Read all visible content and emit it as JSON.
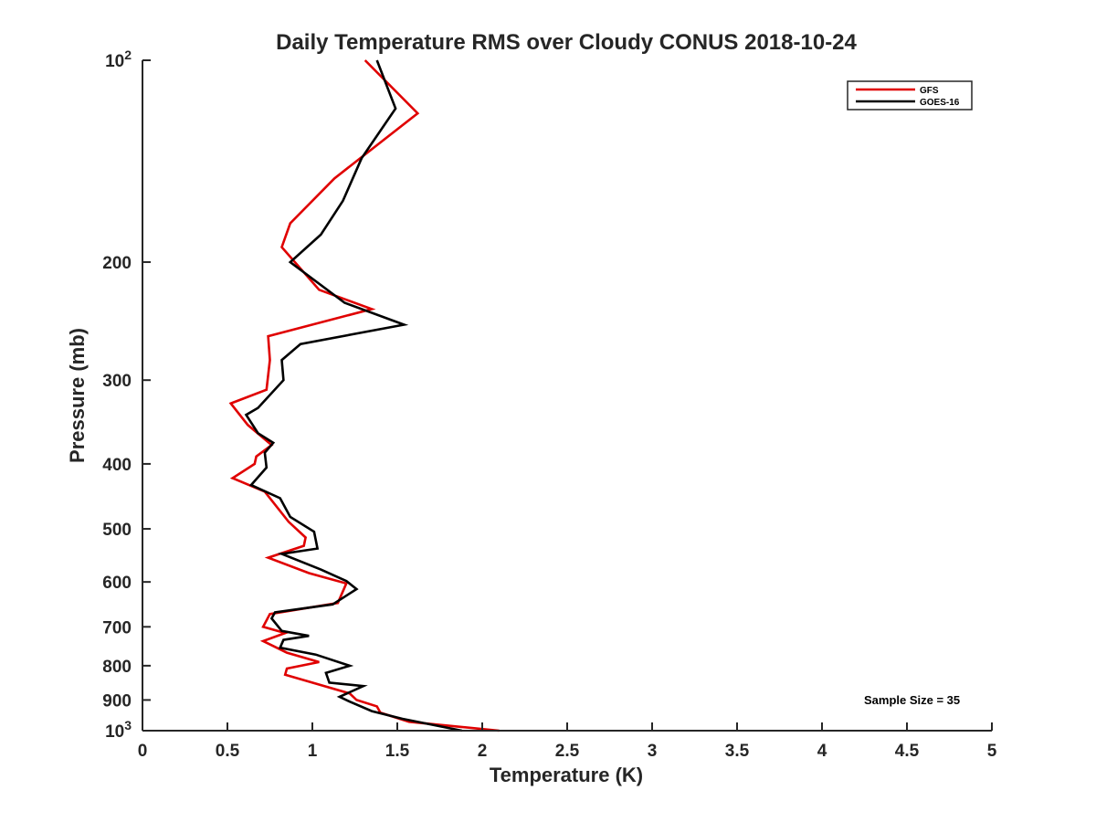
{
  "chart_data": {
    "type": "line",
    "title": "Daily Temperature RMS over Cloudy CONUS 2018-10-24",
    "xlabel": "Temperature (K)",
    "ylabel": "Pressure (mb)",
    "xlim": [
      0,
      5
    ],
    "ylim": [
      100,
      1000
    ],
    "yscale": "log",
    "y_reversed": true,
    "grid": false,
    "legend_position": "top-right",
    "x_ticks": [
      "0",
      "0.5",
      "1",
      "1.5",
      "2",
      "2.5",
      "3",
      "3.5",
      "4",
      "4.5",
      "5"
    ],
    "x_tick_values": [
      0,
      0.5,
      1,
      1.5,
      2,
      2.5,
      3,
      3.5,
      4,
      4.5,
      5
    ],
    "y_ticks": [
      {
        "value": 100,
        "base": "10",
        "exp": "2"
      },
      {
        "value": 200,
        "label": "200"
      },
      {
        "value": 300,
        "label": "300"
      },
      {
        "value": 400,
        "label": "400"
      },
      {
        "value": 500,
        "label": "500"
      },
      {
        "value": 600,
        "label": "600"
      },
      {
        "value": 700,
        "label": "700"
      },
      {
        "value": 800,
        "label": "800"
      },
      {
        "value": 900,
        "label": "900"
      },
      {
        "value": 1000,
        "base": "10",
        "exp": "3"
      }
    ],
    "annotation": "Sample Size = 35",
    "series": [
      {
        "name": "GFS",
        "color": "#e00000",
        "points": [
          [
            1.31,
            100
          ],
          [
            1.62,
            120
          ],
          [
            1.13,
            150
          ],
          [
            0.87,
            175
          ],
          [
            0.82,
            190
          ],
          [
            1.04,
            220
          ],
          [
            1.35,
            235
          ],
          [
            0.74,
            258
          ],
          [
            0.75,
            280
          ],
          [
            0.73,
            310
          ],
          [
            0.52,
            325
          ],
          [
            0.62,
            350
          ],
          [
            0.76,
            375
          ],
          [
            0.67,
            390
          ],
          [
            0.66,
            400
          ],
          [
            0.53,
            420
          ],
          [
            0.72,
            440
          ],
          [
            0.86,
            488
          ],
          [
            0.96,
            515
          ],
          [
            0.95,
            530
          ],
          [
            0.74,
            552
          ],
          [
            0.98,
            582
          ],
          [
            1.2,
            603
          ],
          [
            1.15,
            645
          ],
          [
            0.75,
            670
          ],
          [
            0.71,
            700
          ],
          [
            0.84,
            715
          ],
          [
            0.71,
            735
          ],
          [
            0.85,
            765
          ],
          [
            1.04,
            790
          ],
          [
            0.85,
            808
          ],
          [
            0.84,
            825
          ],
          [
            1.22,
            880
          ],
          [
            1.26,
            900
          ],
          [
            1.38,
            920
          ],
          [
            1.4,
            940
          ],
          [
            1.57,
            970
          ],
          [
            2.1,
            1000
          ]
        ]
      },
      {
        "name": "GOES-16",
        "color": "#000000",
        "points": [
          [
            1.38,
            100
          ],
          [
            1.49,
            118
          ],
          [
            1.29,
            140
          ],
          [
            1.18,
            162
          ],
          [
            1.05,
            182
          ],
          [
            0.87,
            200
          ],
          [
            1.19,
            230
          ],
          [
            1.54,
            248
          ],
          [
            0.93,
            265
          ],
          [
            0.82,
            280
          ],
          [
            0.83,
            300
          ],
          [
            0.68,
            330
          ],
          [
            0.61,
            338
          ],
          [
            0.68,
            360
          ],
          [
            0.77,
            372
          ],
          [
            0.72,
            385
          ],
          [
            0.73,
            405
          ],
          [
            0.64,
            430
          ],
          [
            0.81,
            450
          ],
          [
            0.87,
            480
          ],
          [
            1.01,
            505
          ],
          [
            1.03,
            535
          ],
          [
            0.82,
            545
          ],
          [
            1.05,
            575
          ],
          [
            1.2,
            598
          ],
          [
            1.26,
            615
          ],
          [
            1.12,
            648
          ],
          [
            0.78,
            666
          ],
          [
            0.76,
            680
          ],
          [
            0.82,
            710
          ],
          [
            0.98,
            722
          ],
          [
            0.83,
            732
          ],
          [
            0.81,
            752
          ],
          [
            1.02,
            770
          ],
          [
            1.22,
            800
          ],
          [
            1.08,
            820
          ],
          [
            1.1,
            848
          ],
          [
            1.3,
            858
          ],
          [
            1.16,
            890
          ],
          [
            1.22,
            905
          ],
          [
            1.35,
            935
          ],
          [
            1.53,
            960
          ],
          [
            1.88,
            1000
          ]
        ]
      }
    ]
  }
}
